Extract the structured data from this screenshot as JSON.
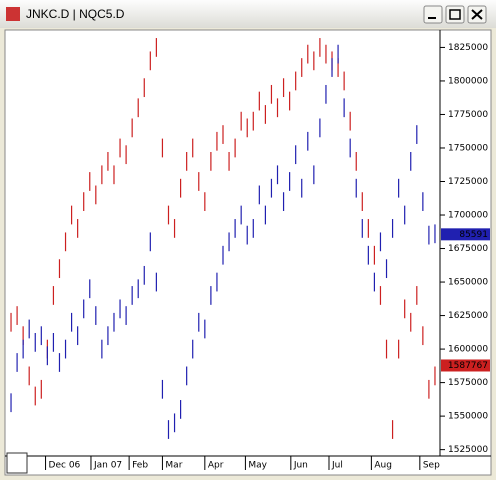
{
  "window_title": "JNKC.D   |   NQC5.D",
  "chart_data": {
    "type": "range_bar",
    "xlim": [
      -0.5,
      70.5
    ],
    "xticks": [
      {
        "value": 5.7,
        "label": "Dec 06"
      },
      {
        "value": 13.2,
        "label": "Jan 07"
      },
      {
        "value": 19.5,
        "label": "Feb"
      },
      {
        "value": 25,
        "label": "Mar"
      },
      {
        "value": 32,
        "label": "Apr"
      },
      {
        "value": 38.7,
        "label": "May"
      },
      {
        "value": 46.2,
        "label": "Jun"
      },
      {
        "value": 52.5,
        "label": "Jul"
      },
      {
        "value": 59.5,
        "label": "Aug"
      },
      {
        "value": 67.5,
        "label": "Sep"
      }
    ],
    "ylim": [
      1521000,
      1838000
    ],
    "yticks": [
      1525000,
      1550000,
      1575000,
      1600000,
      1625000,
      1650000,
      1675000,
      1700000,
      1725000,
      1750000,
      1775000,
      1800000,
      1825000
    ],
    "series": [
      {
        "name": "JNKC.D",
        "color": "#cc2020",
        "last_value": 1587767,
        "high": [
          1627000,
          1632000,
          1617000,
          1587000,
          1572000,
          1577000,
          1607000,
          1647000,
          1667000,
          1687000,
          1707000,
          1697000,
          1717000,
          1732000,
          1722000,
          1737000,
          1747000,
          1737000,
          1757000,
          1752000,
          1772000,
          1787000,
          1802000,
          1822000,
          1832000,
          1757000,
          1707000,
          1697000,
          1727000,
          1747000,
          1757000,
          1732000,
          1717000,
          1747000,
          1762000,
          1767000,
          1747000,
          1757000,
          1777000,
          1772000,
          1777000,
          1792000,
          1782000,
          1797000,
          1787000,
          1802000,
          1792000,
          1807000,
          1817000,
          1827000,
          1822000,
          1832000,
          1827000,
          1822000,
          1817000,
          1807000,
          1777000,
          1747000,
          1717000,
          1697000,
          1677000,
          1647000,
          1607000,
          1547000,
          1607000,
          1637000,
          1627000,
          1647000,
          1617000,
          1577000,
          1587000
        ],
        "low": [
          1613000,
          1618000,
          1603000,
          1573000,
          1558000,
          1563000,
          1593000,
          1633000,
          1653000,
          1673000,
          1693000,
          1683000,
          1703000,
          1718000,
          1708000,
          1723000,
          1733000,
          1723000,
          1743000,
          1738000,
          1758000,
          1773000,
          1788000,
          1808000,
          1818000,
          1743000,
          1693000,
          1683000,
          1713000,
          1733000,
          1743000,
          1718000,
          1703000,
          1733000,
          1748000,
          1753000,
          1733000,
          1743000,
          1763000,
          1758000,
          1763000,
          1778000,
          1768000,
          1783000,
          1773000,
          1788000,
          1778000,
          1793000,
          1803000,
          1813000,
          1808000,
          1818000,
          1813000,
          1808000,
          1803000,
          1793000,
          1763000,
          1733000,
          1703000,
          1683000,
          1663000,
          1633000,
          1593000,
          1533000,
          1593000,
          1623000,
          1613000,
          1633000,
          1603000,
          1563000,
          1573000
        ]
      },
      {
        "name": "NQC5.D",
        "color": "#2020b0",
        "last_value": {
          "value": 1685591,
          "label": "85591"
        },
        "high": [
          1567000,
          1597000,
          1607000,
          1622000,
          1612000,
          1617000,
          1602000,
          1612000,
          1597000,
          1607000,
          1627000,
          1617000,
          1637000,
          1652000,
          1632000,
          1607000,
          1617000,
          1627000,
          1637000,
          1632000,
          1647000,
          1652000,
          1662000,
          1687000,
          1657000,
          1577000,
          1547000,
          1552000,
          1562000,
          1587000,
          1607000,
          1627000,
          1622000,
          1647000,
          1657000,
          1677000,
          1687000,
          1697000,
          1707000,
          1692000,
          1697000,
          1722000,
          1707000,
          1727000,
          1737000,
          1717000,
          1732000,
          1752000,
          1727000,
          1762000,
          1737000,
          1772000,
          1797000,
          1817000,
          1827000,
          1787000,
          1757000,
          1727000,
          1697000,
          1677000,
          1657000,
          1687000,
          1667000,
          1697000,
          1727000,
          1707000,
          1747000,
          1767000,
          1717000,
          1692000,
          1693000
        ],
        "low": [
          1553000,
          1583000,
          1593000,
          1608000,
          1598000,
          1603000,
          1588000,
          1598000,
          1583000,
          1593000,
          1613000,
          1603000,
          1623000,
          1638000,
          1618000,
          1593000,
          1603000,
          1613000,
          1623000,
          1618000,
          1633000,
          1638000,
          1648000,
          1673000,
          1643000,
          1563000,
          1533000,
          1538000,
          1548000,
          1573000,
          1593000,
          1613000,
          1608000,
          1633000,
          1643000,
          1663000,
          1673000,
          1683000,
          1693000,
          1678000,
          1683000,
          1708000,
          1693000,
          1713000,
          1723000,
          1703000,
          1718000,
          1738000,
          1713000,
          1748000,
          1723000,
          1758000,
          1783000,
          1803000,
          1813000,
          1773000,
          1743000,
          1713000,
          1683000,
          1663000,
          1643000,
          1673000,
          1653000,
          1683000,
          1713000,
          1693000,
          1733000,
          1753000,
          1703000,
          1678000,
          1679000
        ]
      }
    ]
  }
}
